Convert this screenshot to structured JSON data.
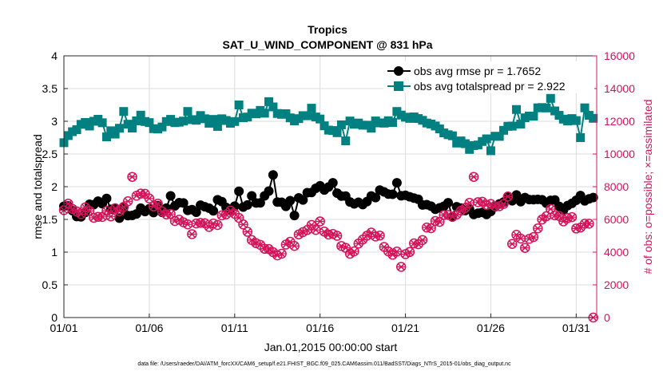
{
  "chart_data": {
    "type": "line",
    "title": "Tropics",
    "subtitle": "SAT_U_WIND_COMPONENT @ 831 hPa",
    "xlabel": "Jan.01,2015 00:00:00 start",
    "ylabel": "rmse and totalspread",
    "y2label": "# of obs: o=possible; ×=assimilated",
    "xlim": [
      0,
      31.2
    ],
    "ylim": [
      0,
      4
    ],
    "y2lim": [
      0,
      16000
    ],
    "x_ticks": [
      {
        "value": 0,
        "label": "01/01"
      },
      {
        "value": 5,
        "label": "01/06"
      },
      {
        "value": 10,
        "label": "01/11"
      },
      {
        "value": 15,
        "label": "01/16"
      },
      {
        "value": 20,
        "label": "01/21"
      },
      {
        "value": 25,
        "label": "01/26"
      },
      {
        "value": 30,
        "label": "01/31"
      }
    ],
    "y_ticks": [
      "0",
      "0.5",
      "1",
      "1.5",
      "2",
      "2.5",
      "3",
      "3.5",
      "4"
    ],
    "y2_ticks": [
      "0",
      "2000",
      "4000",
      "6000",
      "8000",
      "10000",
      "12000",
      "14000",
      "16000"
    ],
    "legend_position": "top-right",
    "series": [
      {
        "name": "obs avg rmse pr = 1.7652",
        "color": "#000000",
        "axis": "left",
        "marker": "filled-circle",
        "control_points": [
          [
            0,
            1.75
          ],
          [
            0.5,
            1.58
          ],
          [
            1,
            1.62
          ],
          [
            1.5,
            1.7
          ],
          [
            2,
            1.73
          ],
          [
            2.5,
            1.68
          ],
          [
            3,
            1.7
          ],
          [
            3.5,
            1.62
          ],
          [
            4,
            1.58
          ],
          [
            4.5,
            1.7
          ],
          [
            5,
            1.62
          ],
          [
            5.5,
            1.66
          ],
          [
            6,
            1.62
          ],
          [
            6.5,
            1.73
          ],
          [
            7,
            1.75
          ],
          [
            7.5,
            1.6
          ],
          [
            8,
            1.66
          ],
          [
            8.5,
            1.62
          ],
          [
            9,
            1.75
          ],
          [
            9.5,
            1.7
          ],
          [
            10,
            1.68
          ],
          [
            10.5,
            1.72
          ],
          [
            11,
            1.8
          ],
          [
            11.5,
            1.75
          ],
          [
            12,
            1.92
          ],
          [
            12.5,
            1.78
          ],
          [
            13,
            1.72
          ],
          [
            13.5,
            1.8
          ],
          [
            14,
            1.85
          ],
          [
            14.5,
            1.95
          ],
          [
            15,
            1.96
          ],
          [
            15.5,
            1.98
          ],
          [
            16,
            1.95
          ],
          [
            16.5,
            1.85
          ],
          [
            17,
            1.78
          ],
          [
            17.5,
            1.76
          ],
          [
            18,
            1.85
          ],
          [
            18.5,
            1.92
          ],
          [
            19,
            1.9
          ],
          [
            19.5,
            1.92
          ],
          [
            20,
            1.88
          ],
          [
            20.5,
            1.78
          ],
          [
            21,
            1.72
          ],
          [
            21.5,
            1.68
          ],
          [
            22,
            1.7
          ],
          [
            22.5,
            1.72
          ],
          [
            23,
            1.72
          ],
          [
            23.5,
            1.66
          ],
          [
            24,
            1.62
          ],
          [
            24.5,
            1.58
          ],
          [
            25,
            1.68
          ],
          [
            25.5,
            1.72
          ],
          [
            26,
            1.82
          ],
          [
            26.5,
            1.85
          ],
          [
            27,
            1.8
          ],
          [
            27.5,
            1.75
          ],
          [
            28,
            1.82
          ],
          [
            28.5,
            1.76
          ],
          [
            29,
            1.72
          ],
          [
            29.5,
            1.76
          ],
          [
            30,
            1.82
          ],
          [
            30.5,
            1.84
          ],
          [
            31,
            1.8
          ]
        ],
        "spikes": [
          [
            1,
            1.54
          ],
          [
            2.4,
            1.82
          ],
          [
            3.3,
            1.52
          ],
          [
            6.2,
            1.86
          ],
          [
            10.3,
            1.93
          ],
          [
            12.2,
            2.18
          ],
          [
            13.6,
            1.56
          ],
          [
            15.7,
            2.06
          ],
          [
            19.5,
            2.06
          ],
          [
            22.8,
            1.54
          ],
          [
            29.2,
            1.64
          ]
        ]
      },
      {
        "name": "obs avg totalspread pr = 2.922",
        "color": "#008080",
        "axis": "left",
        "marker": "filled-square",
        "control_points": [
          [
            0,
            2.72
          ],
          [
            0.5,
            2.88
          ],
          [
            1,
            2.95
          ],
          [
            1.5,
            2.9
          ],
          [
            2,
            3.02
          ],
          [
            2.5,
            2.82
          ],
          [
            3,
            2.85
          ],
          [
            3.5,
            2.92
          ],
          [
            4,
            2.95
          ],
          [
            4.5,
            3.05
          ],
          [
            5,
            2.95
          ],
          [
            5.5,
            2.9
          ],
          [
            6,
            2.98
          ],
          [
            6.5,
            3.02
          ],
          [
            7,
            2.95
          ],
          [
            7.5,
            3.05
          ],
          [
            8,
            3.1
          ],
          [
            8.5,
            3.02
          ],
          [
            9,
            2.98
          ],
          [
            9.5,
            3.0
          ],
          [
            10,
            3.05
          ],
          [
            10.5,
            3.08
          ],
          [
            11,
            3.12
          ],
          [
            11.5,
            3.15
          ],
          [
            12,
            3.2
          ],
          [
            12.5,
            3.15
          ],
          [
            13,
            3.1
          ],
          [
            13.5,
            3.05
          ],
          [
            14,
            3.1
          ],
          [
            14.5,
            3.05
          ],
          [
            15,
            3.0
          ],
          [
            15.5,
            2.92
          ],
          [
            16,
            2.88
          ],
          [
            16.5,
            2.95
          ],
          [
            17,
            3.0
          ],
          [
            17.5,
            2.95
          ],
          [
            18,
            2.92
          ],
          [
            18.5,
            3.0
          ],
          [
            19,
            2.98
          ],
          [
            19.5,
            3.05
          ],
          [
            20,
            3.1
          ],
          [
            20.5,
            3.08
          ],
          [
            21,
            2.98
          ],
          [
            21.5,
            2.9
          ],
          [
            22,
            2.85
          ],
          [
            22.5,
            2.78
          ],
          [
            23,
            2.7
          ],
          [
            23.5,
            2.62
          ],
          [
            24,
            2.6
          ],
          [
            24.5,
            2.65
          ],
          [
            25,
            2.72
          ],
          [
            25.5,
            2.8
          ],
          [
            26,
            2.88
          ],
          [
            26.5,
            2.95
          ],
          [
            27,
            3.0
          ],
          [
            27.5,
            3.1
          ],
          [
            28,
            3.25
          ],
          [
            28.5,
            3.18
          ],
          [
            29,
            3.1
          ],
          [
            29.5,
            3.02
          ],
          [
            30,
            3.05
          ],
          [
            30.5,
            3.15
          ],
          [
            31,
            3.1
          ]
        ],
        "spikes": [
          [
            3.5,
            3.15
          ],
          [
            7.3,
            3.15
          ],
          [
            10.2,
            3.25
          ],
          [
            12.1,
            3.3
          ],
          [
            14.6,
            3.2
          ],
          [
            16.4,
            2.7
          ],
          [
            19.4,
            3.15
          ],
          [
            24.9,
            2.55
          ],
          [
            26.4,
            3.18
          ],
          [
            28.6,
            3.35
          ],
          [
            30.2,
            2.75
          ]
        ]
      },
      {
        "name": "# obs assimilated",
        "color": "#d4145a",
        "axis": "right",
        "marker": "circle-x",
        "control_points": [
          [
            0,
            6800
          ],
          [
            0.5,
            6700
          ],
          [
            1,
            6600
          ],
          [
            1.5,
            6400
          ],
          [
            2,
            6300
          ],
          [
            2.5,
            6400
          ],
          [
            3,
            6400
          ],
          [
            3.5,
            6800
          ],
          [
            4,
            7800
          ],
          [
            4.5,
            7600
          ],
          [
            5,
            7200
          ],
          [
            5.5,
            6800
          ],
          [
            6,
            6400
          ],
          [
            6.5,
            6200
          ],
          [
            7,
            5900
          ],
          [
            7.5,
            5700
          ],
          [
            8,
            5600
          ],
          [
            8.5,
            5700
          ],
          [
            9,
            5900
          ],
          [
            9.5,
            6100
          ],
          [
            10,
            6400
          ],
          [
            10.5,
            5800
          ],
          [
            11,
            5000
          ],
          [
            11.5,
            4300
          ],
          [
            12,
            4200
          ],
          [
            12.5,
            4100
          ],
          [
            13,
            4200
          ],
          [
            13.5,
            4600
          ],
          [
            14,
            5100
          ],
          [
            14.5,
            5500
          ],
          [
            15,
            5800
          ],
          [
            15.5,
            5100
          ],
          [
            16,
            4700
          ],
          [
            16.5,
            4200
          ],
          [
            17,
            4300
          ],
          [
            17.5,
            4700
          ],
          [
            18,
            4900
          ],
          [
            18.5,
            4800
          ],
          [
            19,
            4300
          ],
          [
            19.5,
            3800
          ],
          [
            20,
            3600
          ],
          [
            20.5,
            4300
          ],
          [
            21,
            5000
          ],
          [
            21.5,
            5600
          ],
          [
            22,
            6000
          ],
          [
            22.5,
            6300
          ],
          [
            23,
            6500
          ],
          [
            23.5,
            6800
          ],
          [
            24,
            7000
          ],
          [
            24.5,
            6800
          ],
          [
            25,
            6700
          ],
          [
            25.5,
            6600
          ],
          [
            26,
            6800
          ],
          [
            26.5,
            5000
          ],
          [
            27,
            4500
          ],
          [
            27.5,
            4800
          ],
          [
            28,
            5700
          ],
          [
            28.5,
            6500
          ],
          [
            29,
            6200
          ],
          [
            29.5,
            6000
          ],
          [
            30,
            5700
          ],
          [
            30.5,
            5500
          ],
          [
            31,
            5400
          ]
        ],
        "spikes": [
          [
            4,
            8600
          ],
          [
            7.6,
            5100
          ],
          [
            12.4,
            3800
          ],
          [
            16.7,
            3900
          ],
          [
            19.8,
            3100
          ],
          [
            23.9,
            8600
          ],
          [
            25.9,
            7400
          ],
          [
            26.2,
            4500
          ],
          [
            30.9,
            0
          ]
        ]
      }
    ]
  },
  "footer": "data file: /Users/raeder/DAI/ATM_forcXX/CAM6_setup/f.e21.FHIST_BGC.f09_025.CAM6assim.011/BadSST/Diags_NTrS_2015-01/obs_diag_output.nc"
}
